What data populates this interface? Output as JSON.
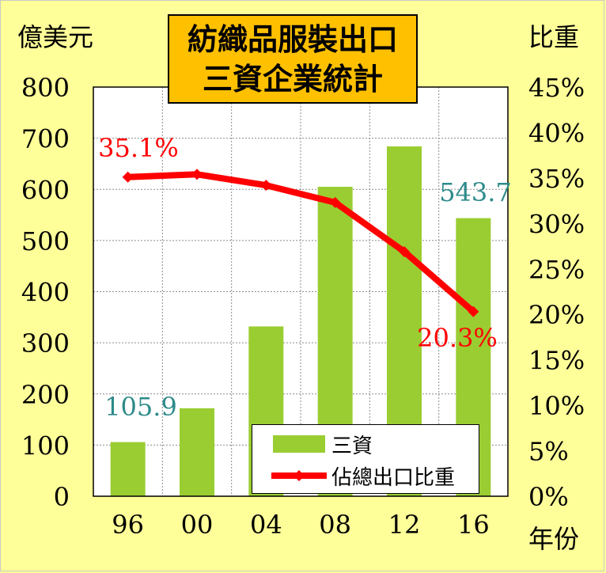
{
  "chart_data": {
    "type": "bar",
    "title_lines": [
      "紡織品服裝出口",
      "三資企業統計"
    ],
    "y_left_unit": "億美元",
    "y_right_unit": "比重",
    "x_unit": "年份",
    "categories": [
      "96",
      "00",
      "04",
      "08",
      "12",
      "16"
    ],
    "ylim_left": [
      0,
      800
    ],
    "yticks_left": [
      "0",
      "100",
      "200",
      "300",
      "400",
      "500",
      "600",
      "700",
      "800"
    ],
    "ylim_right": [
      0,
      45
    ],
    "yticks_right": [
      "0%",
      "5%",
      "10%",
      "15%",
      "20%",
      "25%",
      "30%",
      "35%",
      "40%",
      "45%"
    ],
    "series": [
      {
        "name": "三資",
        "type": "bar",
        "axis": "left",
        "values": [
          105.9,
          172,
          332,
          605,
          684,
          543.7
        ],
        "color": "#9ACD32"
      },
      {
        "name": "佔總出口比重",
        "type": "line",
        "axis": "right",
        "values": [
          35.1,
          35.4,
          34.2,
          32.3,
          26.9,
          20.3
        ],
        "color": "#FF0000"
      }
    ],
    "data_labels": [
      {
        "text": "105.9",
        "color": "#2E8B8B"
      },
      {
        "text": "543.7",
        "color": "#2E8B8B"
      },
      {
        "text": "35.1%",
        "color": "#FF0000"
      },
      {
        "text": "20.3%",
        "color": "#FF0000"
      }
    ],
    "grid": true,
    "legend_position": "bottom-right"
  }
}
